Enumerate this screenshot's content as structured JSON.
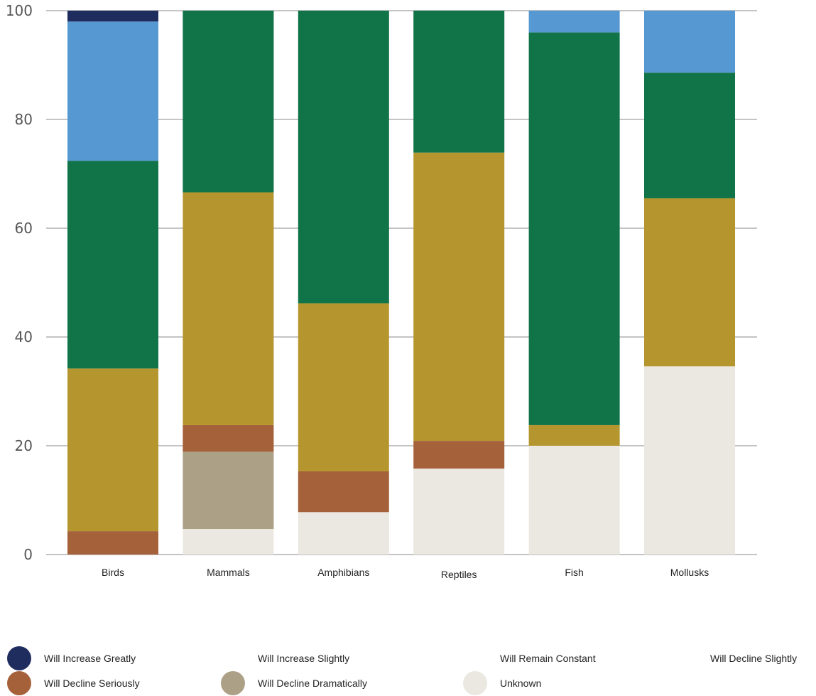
{
  "chart_data": {
    "type": "bar",
    "stacked": true,
    "categories": [
      "Birds",
      "Mammals",
      "Amphibians",
      "Reptiles",
      "Fish",
      "Mollusks"
    ],
    "ylim": [
      0,
      100
    ],
    "yticks": [
      0,
      20,
      40,
      60,
      80,
      100
    ],
    "grid": true,
    "legend_position": "bottom",
    "series": [
      {
        "name": "Unknown",
        "color": "#EBE8E1",
        "values": [
          0,
          4.7,
          7.8,
          15.8,
          20,
          34.6
        ]
      },
      {
        "name": "Will Decline Dramatically",
        "color": "#ACA087",
        "values": [
          0,
          14.2,
          0,
          0,
          0,
          0
        ]
      },
      {
        "name": "Will Decline Seriously",
        "color": "#A5613A",
        "values": [
          4.3,
          4.9,
          7.5,
          5.1,
          0,
          0
        ]
      },
      {
        "name": "Will Decline Slightly",
        "color": "#B5962E",
        "values": [
          29.9,
          42.8,
          30.9,
          53.0,
          3.8,
          30.9
        ]
      },
      {
        "name": "Will Remain Constant",
        "color": "#117348",
        "values": [
          38.2,
          33.4,
          53.8,
          26.1,
          72.2,
          23.1
        ]
      },
      {
        "name": "Will Increase Slightly",
        "color": "#5699D2",
        "values": [
          25.6,
          0,
          0,
          0,
          4.0,
          11.4
        ]
      },
      {
        "name": "Will Increase Greatly",
        "color": "#1F2C5E",
        "values": [
          2.0,
          0,
          0,
          0,
          0,
          0
        ]
      }
    ]
  },
  "legend": [
    {
      "label": "Will Increase Greatly",
      "color": "#1F2C5E"
    },
    {
      "label": "Will Increase Slightly",
      "color": ""
    },
    {
      "label": "Will Remain Constant",
      "color": ""
    },
    {
      "label": "Will Decline Slightly",
      "color": ""
    },
    {
      "label": "Will Decline Seriously",
      "color": "#A5613A"
    },
    {
      "label": "Will Decline Dramatically",
      "color": "#ACA087"
    },
    {
      "label": "Unknown",
      "color": "#EBE8E1"
    }
  ]
}
